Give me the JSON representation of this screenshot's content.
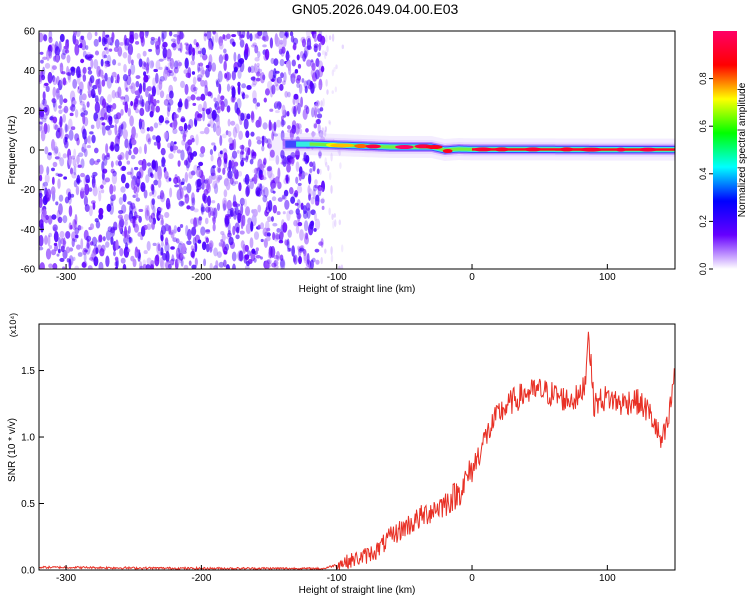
{
  "title": "GN05.2026.049.04.00.E03",
  "chart_data": [
    {
      "type": "heatmap",
      "title": "GN05.2026.049.04.00.E03",
      "xlabel": "Height of straight line (km)",
      "ylabel": "Frequency (Hz)",
      "xlim": [
        -320,
        150
      ],
      "ylim": [
        -60,
        60
      ],
      "xticks": [
        -300,
        -200,
        -100,
        0,
        100
      ],
      "xtick_labels": [
        "-300",
        "-200",
        "-100",
        "0",
        "100"
      ],
      "yticks": [
        -60,
        -40,
        -20,
        0,
        20,
        40,
        60
      ],
      "ytick_labels": [
        "-60",
        "-40",
        "-20",
        "0",
        "20",
        "40",
        "60"
      ],
      "noise_region_x": [
        -320,
        -112
      ],
      "sparse_noise_x": [
        -112,
        -95
      ],
      "signal_band": {
        "x_start": -145,
        "x_end": 150,
        "frequency_profile": [
          [
            -145,
            3
          ],
          [
            -120,
            3
          ],
          [
            -100,
            2.5
          ],
          [
            -80,
            2
          ],
          [
            -60,
            1.5
          ],
          [
            -40,
            1.5
          ],
          [
            -30,
            1.5
          ],
          [
            -20,
            0
          ],
          [
            -10,
            0.5
          ],
          [
            0,
            0.3
          ],
          [
            50,
            0.3
          ],
          [
            100,
            0.2
          ],
          [
            150,
            0.2
          ]
        ],
        "peak_blobs": [
          [
            -103,
            2.5,
            0.7
          ],
          [
            -96,
            2.3,
            0.75
          ],
          [
            -82,
            2.0,
            0.8
          ],
          [
            -73,
            1.8,
            0.95
          ],
          [
            -50,
            1.5,
            1.0
          ],
          [
            -36,
            1.8,
            0.95
          ],
          [
            -28,
            1.5,
            0.9
          ],
          [
            -18,
            -0.5,
            0.9
          ],
          [
            8,
            0.3,
            0.95
          ],
          [
            22,
            0.3,
            0.9
          ],
          [
            45,
            0.3,
            0.95
          ],
          [
            70,
            0.3,
            0.9
          ],
          [
            88,
            0.2,
            0.95
          ],
          [
            110,
            0.2,
            1.0
          ],
          [
            130,
            0.2,
            1.0
          ]
        ]
      },
      "colorbar": {
        "label": "Normalized spectral amplitude",
        "range": [
          0,
          1
        ],
        "ticks": [
          0.0,
          0.2,
          0.4,
          0.6,
          0.8
        ],
        "tick_labels": [
          "0.0",
          "0.2",
          "0.4",
          "0.6",
          "0.8"
        ],
        "colormap": [
          "#ffffff",
          "#6600ff",
          "#0000ff",
          "#00ffff",
          "#00ff00",
          "#ffff00",
          "#ff0000",
          "#ff0066"
        ]
      }
    },
    {
      "type": "line",
      "xlabel": "Height of straight line (km)",
      "ylabel": "SNR (10 * v/v)",
      "yscale_label": "(x10⁴)",
      "xlim": [
        -320,
        150
      ],
      "ylim": [
        0,
        1.85
      ],
      "xticks": [
        -300,
        -200,
        -100,
        0,
        100
      ],
      "xtick_labels": [
        "-300",
        "-200",
        "-100",
        "0",
        "100"
      ],
      "yticks": [
        0.0,
        0.5,
        1.0,
        1.5
      ],
      "ytick_labels": [
        "0.0",
        "0.5",
        "1.0",
        "1.5"
      ],
      "series": [
        {
          "name": "SNR",
          "color": "#e83025",
          "x": [
            -320,
            -300,
            -250,
            -200,
            -150,
            -110,
            -100,
            -90,
            -80,
            -70,
            -60,
            -50,
            -40,
            -30,
            -20,
            -10,
            0,
            10,
            20,
            30,
            40,
            50,
            60,
            70,
            80,
            84,
            86,
            90,
            100,
            110,
            120,
            130,
            135,
            140,
            145,
            150
          ],
          "values": [
            0.02,
            0.02,
            0.015,
            0.012,
            0.012,
            0.01,
            0.04,
            0.07,
            0.1,
            0.15,
            0.25,
            0.32,
            0.38,
            0.45,
            0.5,
            0.58,
            0.75,
            1.0,
            1.18,
            1.27,
            1.33,
            1.35,
            1.32,
            1.28,
            1.3,
            1.45,
            1.8,
            1.25,
            1.3,
            1.25,
            1.28,
            1.2,
            1.1,
            0.95,
            1.1,
            1.5
          ]
        }
      ]
    }
  ]
}
